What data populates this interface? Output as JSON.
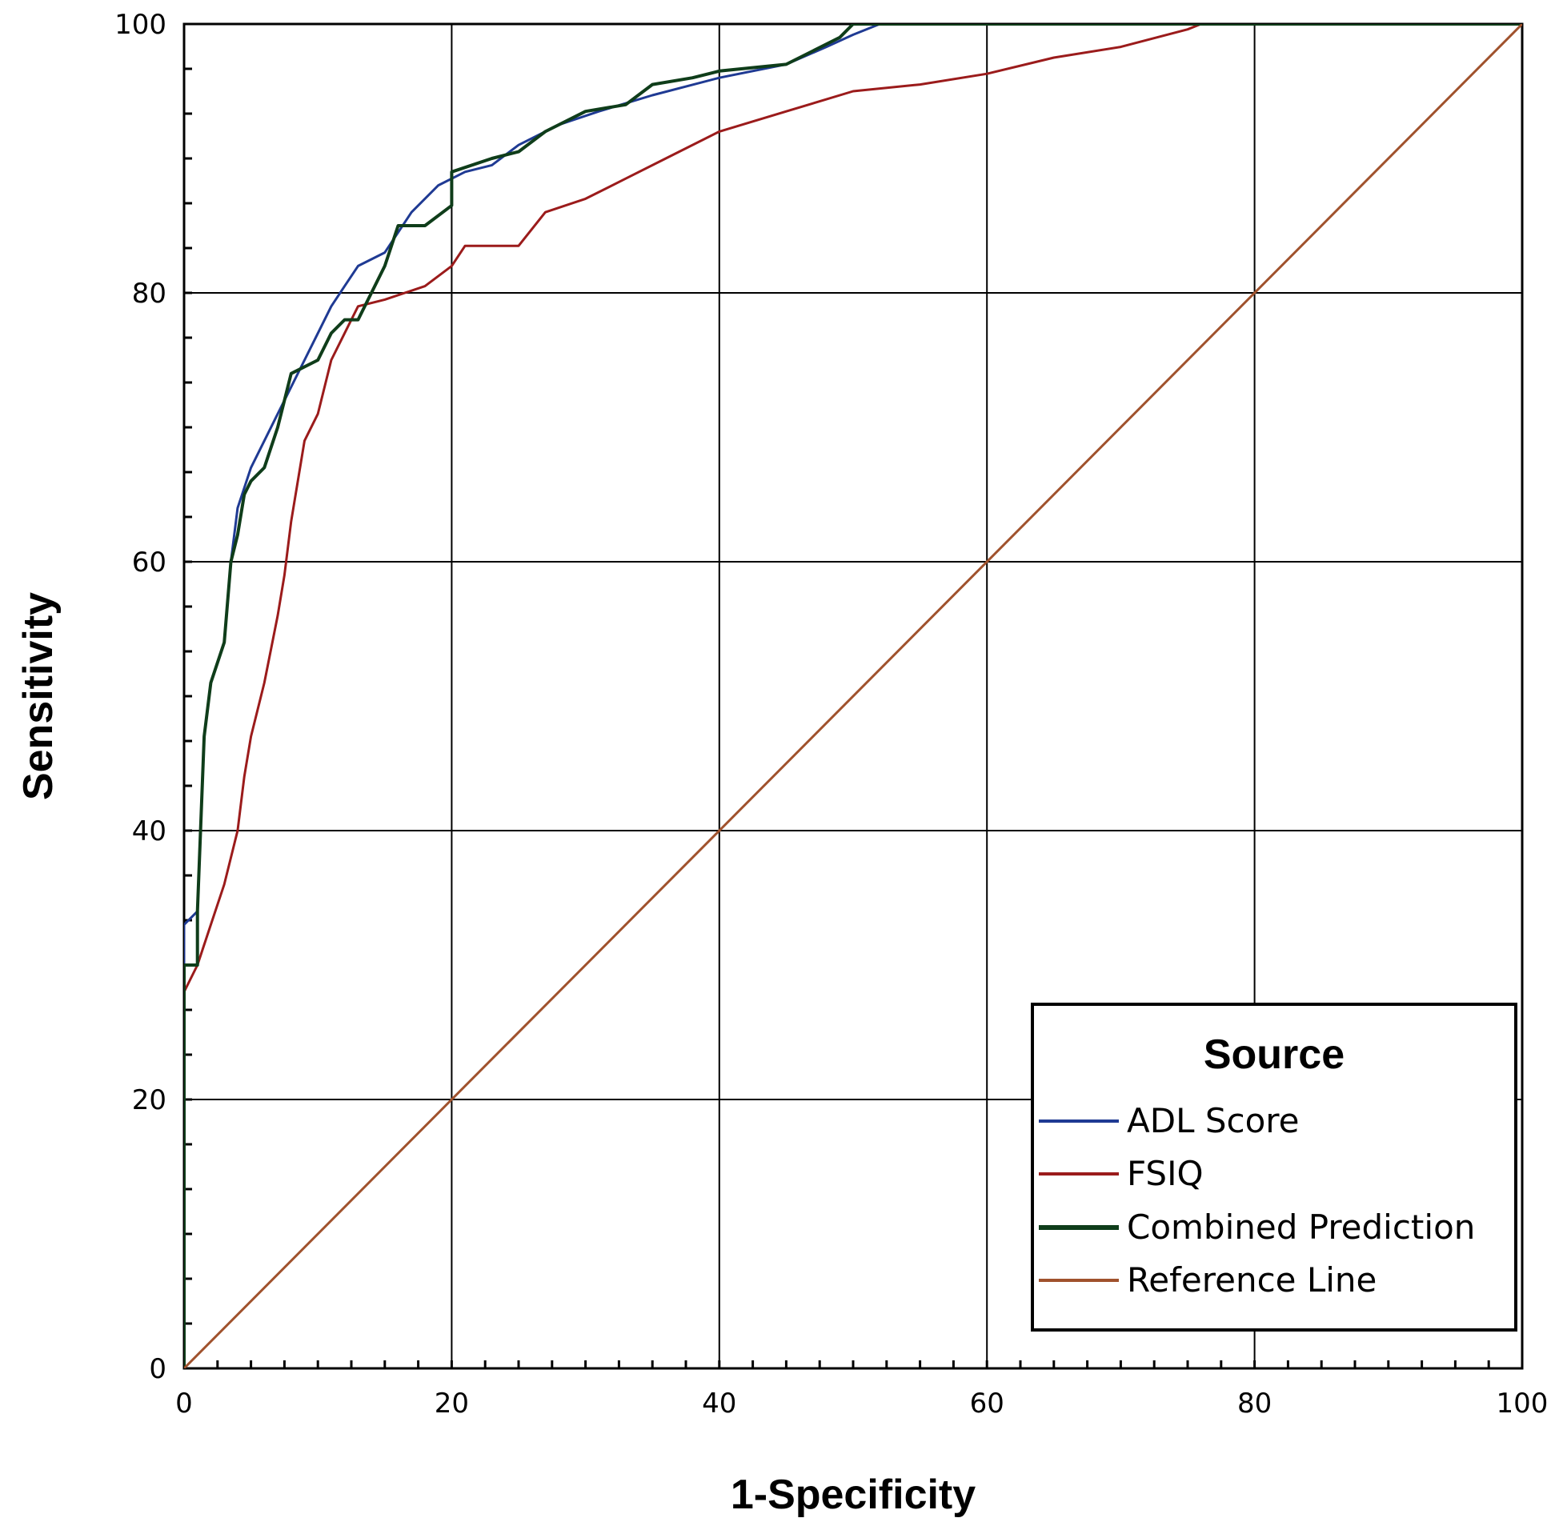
{
  "chart_data": {
    "type": "line",
    "xlabel": "1-Specificity",
    "ylabel": "Sensitivity",
    "xlim": [
      0,
      100
    ],
    "ylim": [
      0,
      100
    ],
    "x_ticks": [
      0,
      20,
      40,
      60,
      80,
      100
    ],
    "y_ticks": [
      0,
      20,
      40,
      60,
      80,
      100
    ],
    "grid": true,
    "legend": {
      "title": "Source",
      "position": "bottom-right"
    },
    "series": [
      {
        "name": "ADL Score",
        "color": "#1f3a93",
        "points": [
          [
            0,
            0
          ],
          [
            0,
            33
          ],
          [
            1,
            34
          ],
          [
            1.5,
            47
          ],
          [
            2,
            51
          ],
          [
            3,
            54
          ],
          [
            3.5,
            60
          ],
          [
            4,
            64
          ],
          [
            5,
            67
          ],
          [
            6,
            69
          ],
          [
            7,
            71
          ],
          [
            8,
            73
          ],
          [
            9,
            75
          ],
          [
            10,
            77
          ],
          [
            11,
            79
          ],
          [
            12,
            80.5
          ],
          [
            13,
            82
          ],
          [
            15,
            83
          ],
          [
            17,
            86
          ],
          [
            19,
            88
          ],
          [
            21,
            89
          ],
          [
            23,
            89.5
          ],
          [
            25,
            91
          ],
          [
            28,
            92.5
          ],
          [
            31,
            93.5
          ],
          [
            35,
            94.7
          ],
          [
            40,
            96
          ],
          [
            45,
            97
          ],
          [
            48,
            98.3
          ],
          [
            50,
            99.2
          ],
          [
            52,
            100
          ],
          [
            100,
            100
          ]
        ]
      },
      {
        "name": "FSIQ",
        "color": "#9b1b1b",
        "points": [
          [
            0,
            0
          ],
          [
            0,
            28
          ],
          [
            1,
            30
          ],
          [
            2,
            33
          ],
          [
            3,
            36
          ],
          [
            4,
            40
          ],
          [
            4.5,
            44
          ],
          [
            5,
            47
          ],
          [
            6,
            51
          ],
          [
            7,
            56
          ],
          [
            7.5,
            59
          ],
          [
            8,
            63
          ],
          [
            9,
            69
          ],
          [
            10,
            71
          ],
          [
            11,
            75
          ],
          [
            12,
            77
          ],
          [
            13,
            79
          ],
          [
            15,
            79.5
          ],
          [
            18,
            80.5
          ],
          [
            20,
            82
          ],
          [
            21,
            83.5
          ],
          [
            25,
            83.5
          ],
          [
            27,
            86
          ],
          [
            30,
            87
          ],
          [
            33,
            88.5
          ],
          [
            36,
            90
          ],
          [
            40,
            92
          ],
          [
            45,
            93.5
          ],
          [
            50,
            95
          ],
          [
            55,
            95.5
          ],
          [
            60,
            96.3
          ],
          [
            65,
            97.5
          ],
          [
            70,
            98.3
          ],
          [
            75,
            99.6
          ],
          [
            76,
            100
          ],
          [
            100,
            100
          ]
        ]
      },
      {
        "name": "Combined Prediction",
        "color": "#0f3d1a",
        "points": [
          [
            0,
            0
          ],
          [
            0,
            30
          ],
          [
            1,
            30
          ],
          [
            1,
            34
          ],
          [
            1.5,
            47
          ],
          [
            2,
            51
          ],
          [
            3,
            54
          ],
          [
            3.5,
            60
          ],
          [
            4,
            62
          ],
          [
            4.5,
            65
          ],
          [
            5,
            66
          ],
          [
            6,
            67
          ],
          [
            7,
            70
          ],
          [
            8,
            74
          ],
          [
            10,
            75
          ],
          [
            11,
            77
          ],
          [
            12,
            78
          ],
          [
            13,
            78
          ],
          [
            14,
            80
          ],
          [
            15,
            82
          ],
          [
            16,
            85
          ],
          [
            18,
            85
          ],
          [
            20,
            86.5
          ],
          [
            20,
            89
          ],
          [
            23,
            90
          ],
          [
            25,
            90.5
          ],
          [
            27,
            92
          ],
          [
            30,
            93.5
          ],
          [
            33,
            94
          ],
          [
            35,
            95.5
          ],
          [
            38,
            96
          ],
          [
            40,
            96.5
          ],
          [
            45,
            97
          ],
          [
            47,
            98
          ],
          [
            49,
            99
          ],
          [
            50,
            100
          ],
          [
            100,
            100
          ]
        ]
      },
      {
        "name": "Reference Line",
        "color": "#a0522d",
        "points": [
          [
            0,
            0
          ],
          [
            100,
            100
          ]
        ]
      }
    ]
  }
}
